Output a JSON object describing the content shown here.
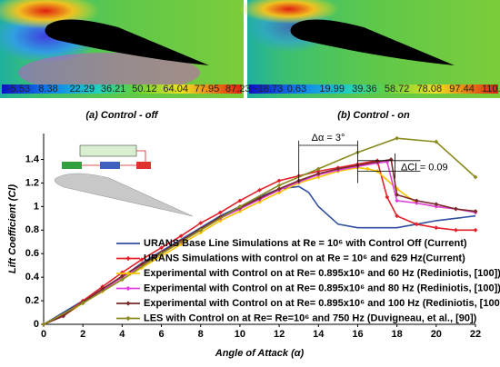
{
  "panels": [
    {
      "caption": "(a) Control - off",
      "colorbar_labels": [
        "-5.53",
        "8.38",
        "22.29",
        "36.21",
        "50.12",
        "64.04",
        "77.95",
        "87.23"
      ]
    },
    {
      "caption": "(b) Control - on",
      "colorbar_labels": [
        "-18.73",
        "0.63",
        "19.99",
        "39.36",
        "58.72",
        "78.08",
        "97.44",
        "110.35"
      ]
    }
  ],
  "chart_data": {
    "type": "line",
    "xlabel": "Angle of Attack (α)",
    "ylabel": "Lift Coefficient (Cl)",
    "xlim": [
      0,
      22
    ],
    "xticks": [
      0,
      2,
      4,
      6,
      8,
      10,
      12,
      14,
      16,
      18,
      20,
      22
    ],
    "ylim": [
      0,
      1.62
    ],
    "yticks": [
      0,
      0.2,
      0.4,
      0.6,
      0.8,
      1,
      1.2,
      1.4
    ],
    "annotations": [
      {
        "text": "Δα = 3°"
      },
      {
        "text": "ΔCl = 0.09"
      }
    ],
    "series": [
      {
        "name": "URANS Base Line Simulations at Re = 10⁶ with Control Off (Current)",
        "color": "#2f4ea0",
        "markers": false,
        "x": [
          0,
          1,
          2,
          3,
          4,
          5,
          6,
          7,
          8,
          9,
          10,
          11,
          12,
          13,
          13.5,
          14,
          15,
          16,
          17,
          18,
          19,
          20,
          21,
          22
        ],
        "values": [
          0,
          0.1,
          0.2,
          0.3,
          0.4,
          0.52,
          0.62,
          0.72,
          0.82,
          0.92,
          1.0,
          1.08,
          1.15,
          1.17,
          1.12,
          1.0,
          0.85,
          0.82,
          0.82,
          0.82,
          0.85,
          0.88,
          0.9,
          0.92
        ]
      },
      {
        "name": "URANS Simulations with control on at Re = 10⁶ and 629 Hz(Current)",
        "color": "#e3202a",
        "markers": true,
        "x": [
          0,
          1,
          2,
          3,
          4,
          5,
          6,
          7,
          8,
          9,
          10,
          11,
          12,
          13,
          14,
          15,
          16,
          17,
          17.5,
          18,
          19,
          20,
          21,
          22
        ],
        "values": [
          0,
          0.08,
          0.2,
          0.32,
          0.44,
          0.55,
          0.65,
          0.75,
          0.86,
          0.95,
          1.05,
          1.14,
          1.22,
          1.26,
          1.3,
          1.33,
          1.36,
          1.39,
          1.08,
          0.92,
          0.85,
          0.82,
          0.8,
          0.8
        ]
      },
      {
        "name": "Experimental  with Control on at Re= 0.895x10⁶ and 60 Hz (Rediniotis, [100])",
        "color": "#f5c400",
        "markers": true,
        "x": [
          0,
          1,
          2,
          3,
          4,
          5,
          6,
          7,
          8,
          9,
          10,
          11,
          12,
          13,
          14,
          15,
          16,
          16.5,
          17,
          18,
          19,
          20,
          21,
          22
        ],
        "values": [
          0,
          0.07,
          0.18,
          0.28,
          0.38,
          0.48,
          0.58,
          0.68,
          0.78,
          0.88,
          0.96,
          1.04,
          1.12,
          1.2,
          1.25,
          1.3,
          1.33,
          1.32,
          1.3,
          1.15,
          1.03,
          1.0,
          0.98,
          0.95
        ]
      },
      {
        "name": "Experimental with Control on at Re= 0.895x10⁶ and 80 Hz (Rediniotis, [100])",
        "color": "#e040e0",
        "markers": true,
        "x": [
          0,
          1,
          2,
          3,
          4,
          5,
          6,
          7,
          8,
          9,
          10,
          11,
          12,
          13,
          14,
          15,
          16,
          17,
          17.5,
          18,
          19,
          20,
          21,
          22
        ],
        "values": [
          0,
          0.07,
          0.19,
          0.29,
          0.4,
          0.5,
          0.6,
          0.7,
          0.8,
          0.9,
          0.98,
          1.06,
          1.14,
          1.21,
          1.27,
          1.31,
          1.34,
          1.37,
          1.38,
          1.05,
          1.03,
          1.0,
          0.98,
          0.95
        ]
      },
      {
        "name": "Experimental with Control on at Re= 0.895x10⁶ and 100 Hz (Rediniotis, [100])",
        "color": "#7a2a2a",
        "markers": true,
        "x": [
          0,
          1,
          2,
          3,
          4,
          5,
          6,
          7,
          8,
          9,
          10,
          11,
          12,
          13,
          14,
          15,
          16,
          17,
          17.7,
          18,
          19,
          20,
          21,
          22
        ],
        "values": [
          0,
          0.07,
          0.19,
          0.3,
          0.41,
          0.51,
          0.61,
          0.71,
          0.81,
          0.91,
          0.99,
          1.07,
          1.15,
          1.22,
          1.28,
          1.32,
          1.35,
          1.38,
          1.4,
          1.1,
          1.05,
          1.02,
          0.98,
          0.96
        ]
      },
      {
        "name": "LES with Control on at Re= Re=10⁶ and 750 Hz (Duvigneau, et al., [90])",
        "color": "#8a8a20",
        "markers": true,
        "x": [
          0,
          2,
          4,
          6,
          8,
          10,
          12,
          14,
          16,
          18,
          20,
          22
        ],
        "values": [
          0,
          0.18,
          0.38,
          0.6,
          0.8,
          1.0,
          1.18,
          1.32,
          1.46,
          1.58,
          1.55,
          1.25
        ]
      }
    ]
  }
}
